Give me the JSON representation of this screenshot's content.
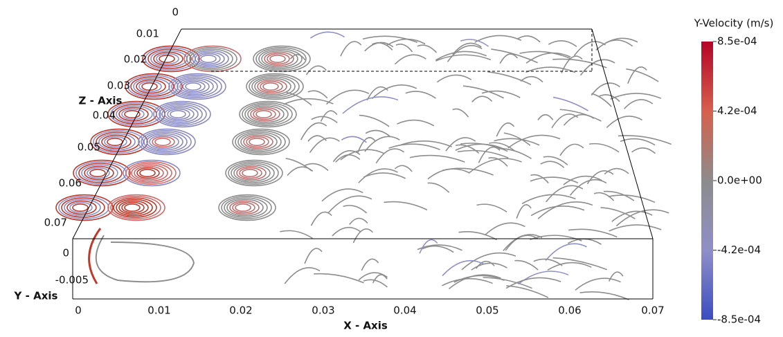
{
  "x_axis": {
    "label": "X - Axis",
    "ticks": [
      "0",
      "0.01",
      "0.02",
      "0.03",
      "0.04",
      "0.05",
      "0.06",
      "0.07"
    ]
  },
  "y_axis": {
    "label": "Y - Axis",
    "ticks": [
      "0",
      "-0.005"
    ]
  },
  "z_axis": {
    "label": "Z - Axis",
    "ticks": [
      "0",
      "0.01",
      "0.02",
      "0.03",
      "0.04",
      "0.05",
      "0.06",
      "0.07"
    ]
  },
  "colorbar": {
    "title": "Y-Velocity (m/s)",
    "ticks": [
      "8.5e-04",
      "4.2e-04",
      "0.0e+00",
      "-4.2e-04",
      "-8.5e-04"
    ]
  }
}
